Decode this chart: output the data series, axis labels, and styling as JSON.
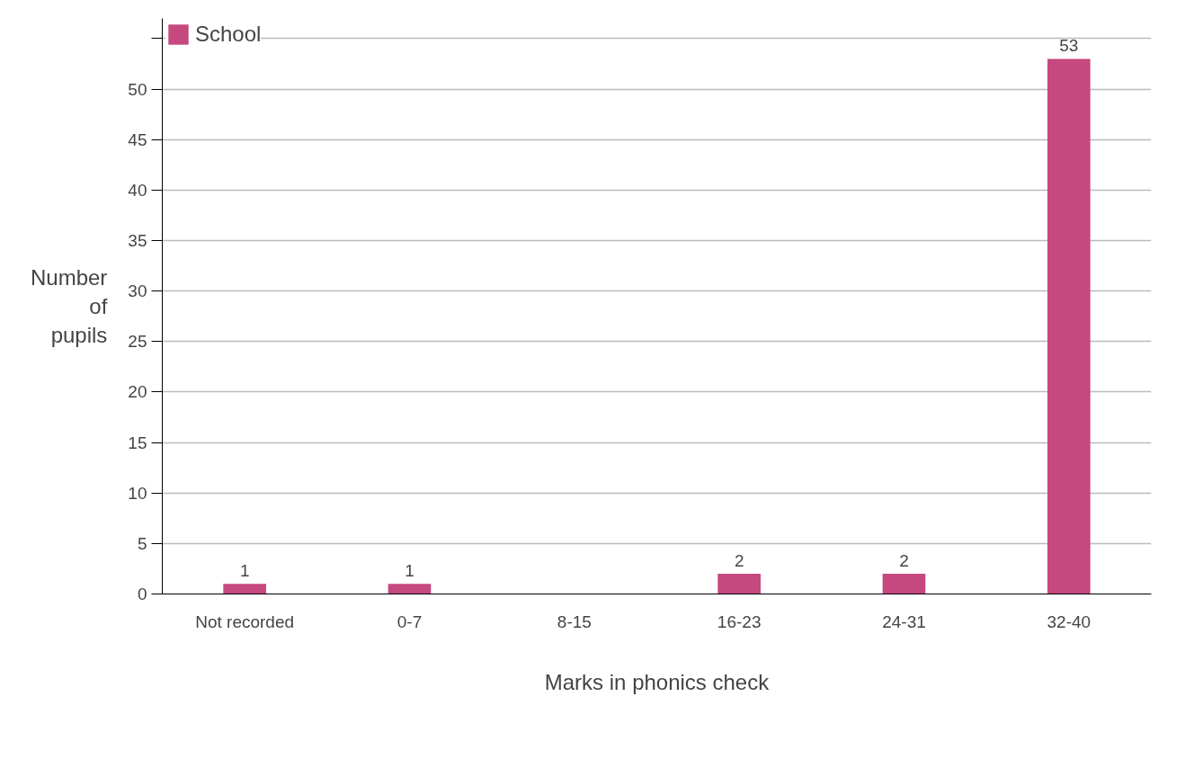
{
  "chart_data": {
    "type": "bar",
    "categories": [
      "Not recorded",
      "0-7",
      "8-15",
      "16-23",
      "24-31",
      "32-40"
    ],
    "series": [
      {
        "name": "School",
        "color": "#c5487f",
        "values": [
          1,
          1,
          null,
          2,
          2,
          53
        ]
      }
    ],
    "xlabel": "Marks in phonics check",
    "ylabel": "Number of pupils",
    "ylim": [
      0,
      57
    ],
    "yticks": [
      0,
      5,
      10,
      15,
      20,
      25,
      30,
      35,
      40,
      45,
      50,
      {
        "value": 55,
        "label": null
      }
    ],
    "grid": "y",
    "legend": "top left",
    "data_labels": true
  }
}
